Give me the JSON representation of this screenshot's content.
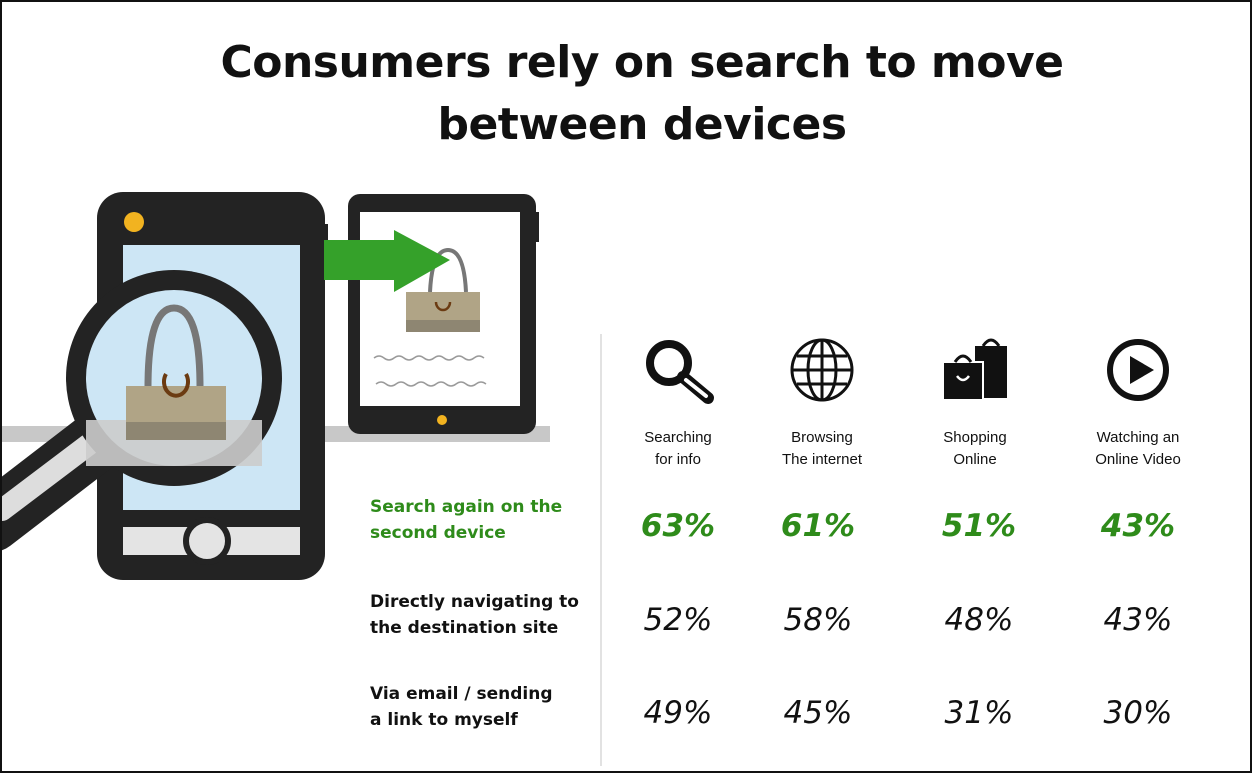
{
  "title": {
    "line1": "Consumers rely on search to move",
    "line2": "between devices"
  },
  "colors": {
    "accent_green": "#2e8b1a",
    "text": "#111111",
    "device_body": "#222222",
    "screen": "#cde6f5",
    "bag": "#b0a486"
  },
  "categories": [
    {
      "icon": "magnifier-icon",
      "line1": "Searching",
      "line2": "for info"
    },
    {
      "icon": "globe-icon",
      "line1": "Browsing",
      "line2": "The internet"
    },
    {
      "icon": "shopping-bag-icon",
      "line1": "Shopping",
      "line2": "Online"
    },
    {
      "icon": "play-icon",
      "line1": "Watching an",
      "line2": "Online Video"
    }
  ],
  "rows": [
    {
      "line1": "Search again on the",
      "line2": "second device",
      "values": [
        "63%",
        "61%",
        "51%",
        "43%"
      ],
      "highlight": true
    },
    {
      "line1": "Directly navigating to",
      "line2": "the destination site",
      "values": [
        "52%",
        "58%",
        "48%",
        "43%"
      ],
      "highlight": false
    },
    {
      "line1": "Via email / sending",
      "line2": "a link to myself",
      "values": [
        "49%",
        "45%",
        "31%",
        "30%"
      ],
      "highlight": false
    }
  ]
}
